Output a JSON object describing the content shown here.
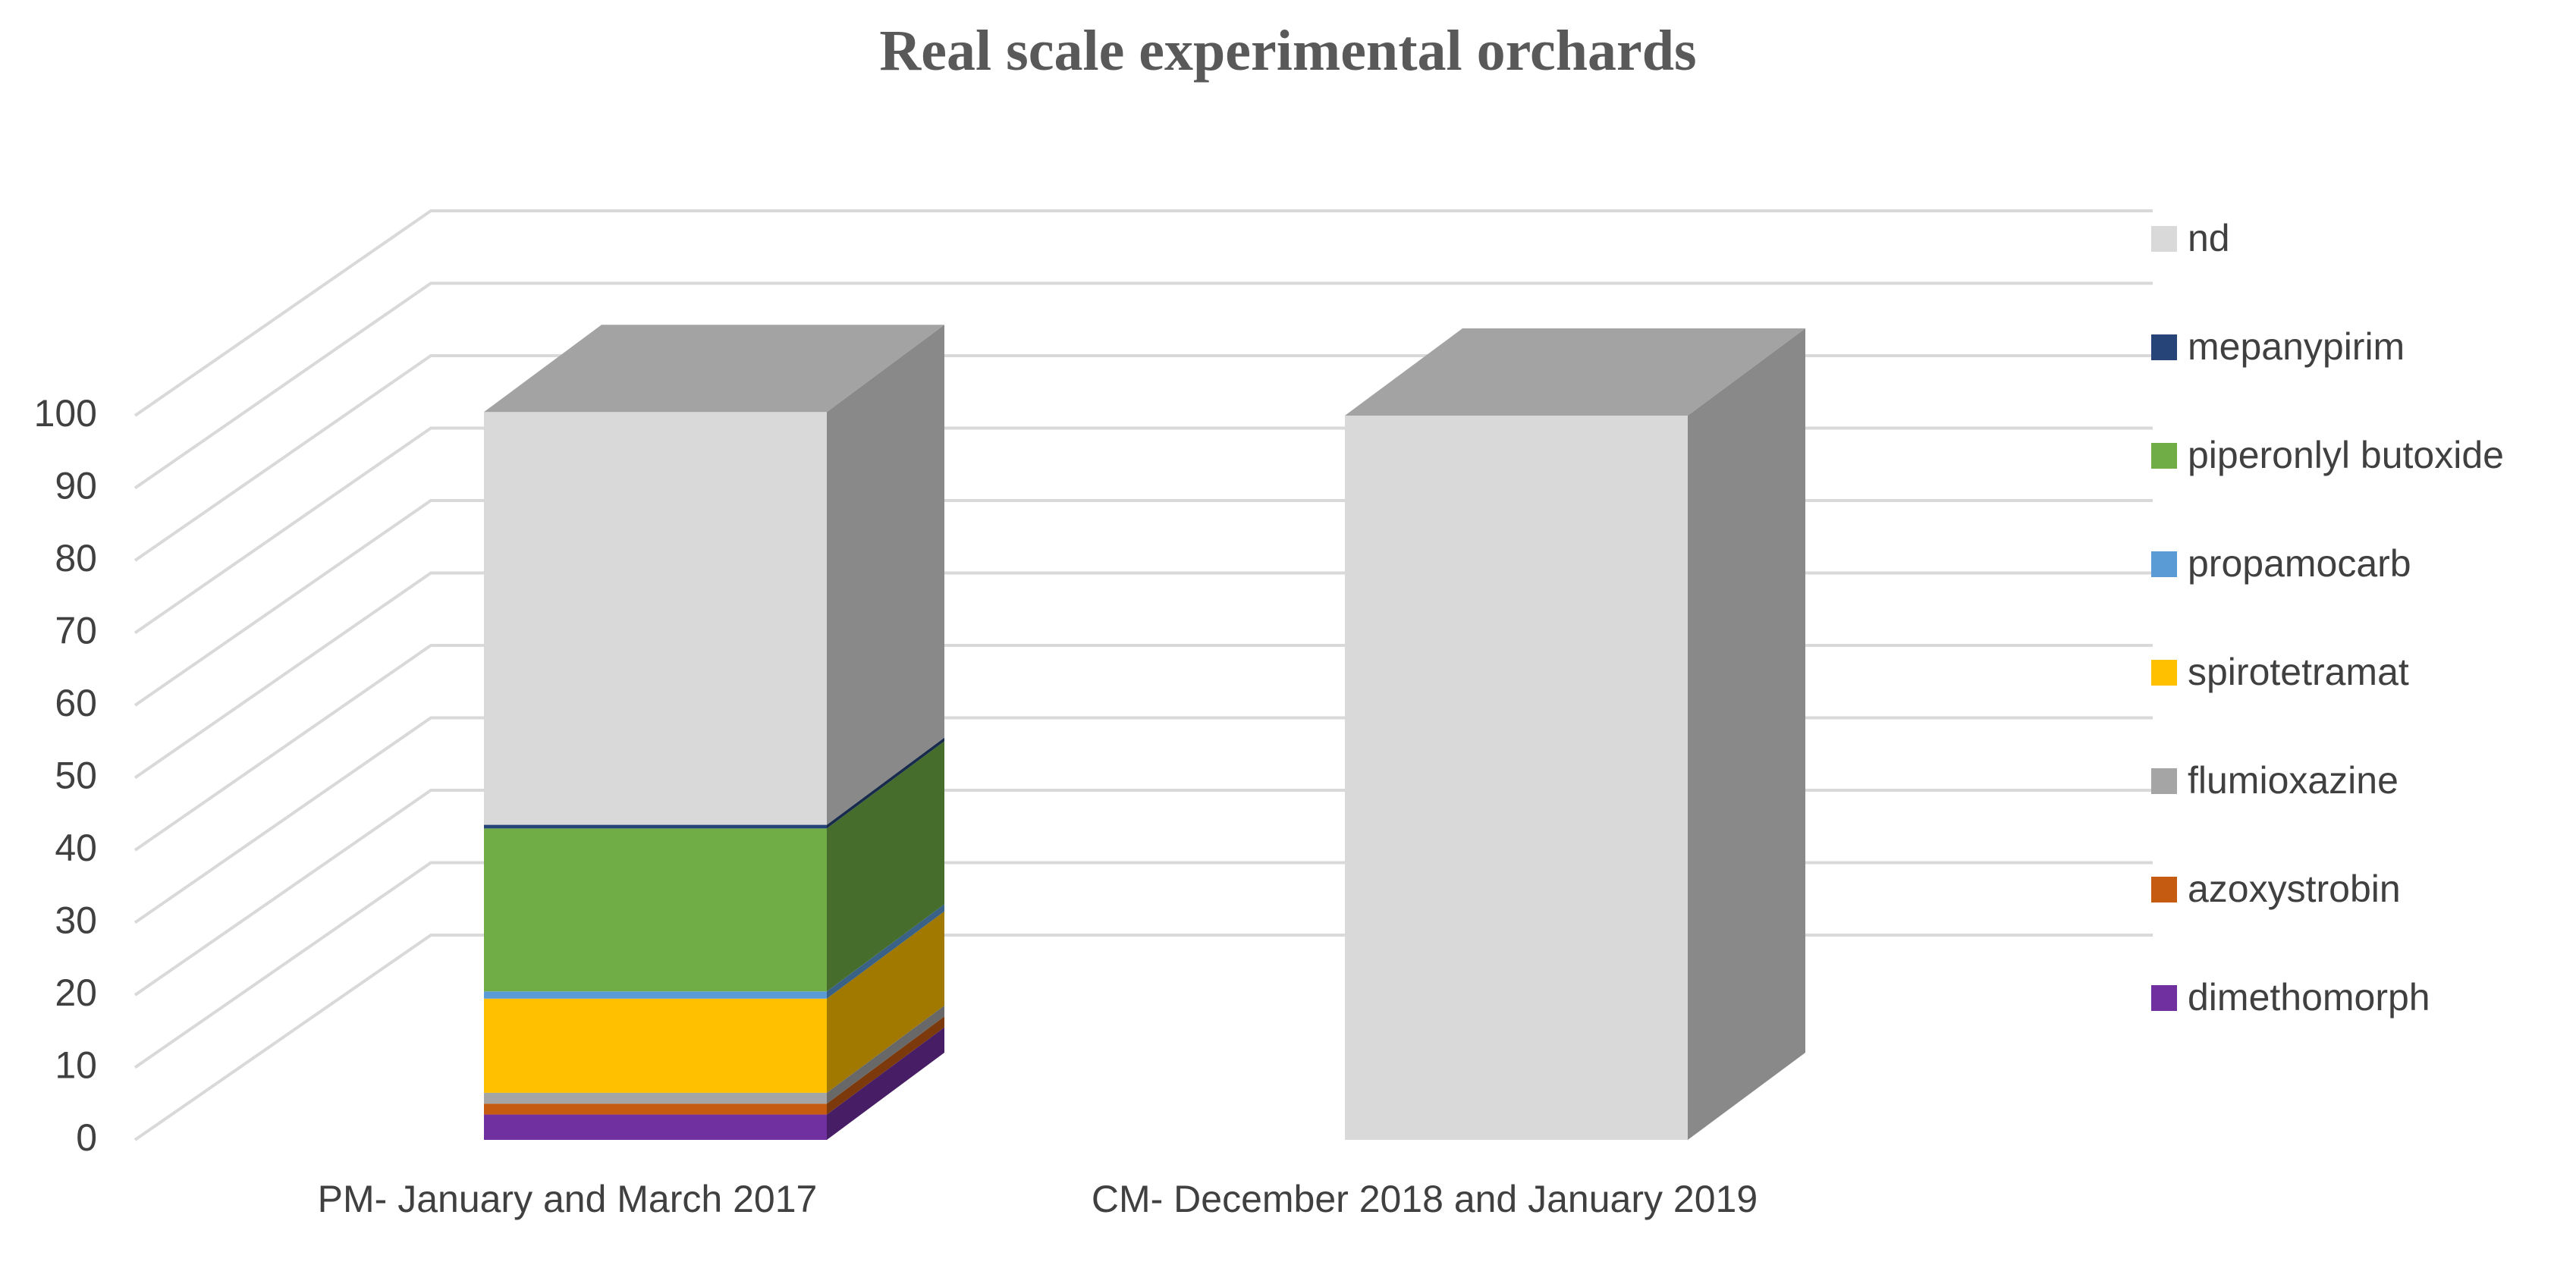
{
  "chart_data": {
    "type": "bar",
    "subtype": "stacked-3d-column",
    "title": "Real scale experimental orchards",
    "xlabel": "",
    "ylabel": "",
    "ylim": [
      0,
      100
    ],
    "ytick_labels": [
      "0",
      "10",
      "20",
      "30",
      "40",
      "50",
      "60",
      "70",
      "80",
      "90",
      "100"
    ],
    "grid": true,
    "legend_position": "right",
    "categories": [
      "PM- January and March 2017",
      "CM- December 2018 and January 2019"
    ],
    "series": [
      {
        "name": "dimethomorph",
        "color": "#7030a0",
        "values": [
          3.5,
          0
        ]
      },
      {
        "name": "azoxystrobin",
        "color": "#c55a11",
        "values": [
          1.5,
          0
        ]
      },
      {
        "name": "flumioxazine",
        "color": "#a5a5a5",
        "values": [
          1.5,
          0
        ]
      },
      {
        "name": "spirotetramat",
        "color": "#ffc000",
        "values": [
          13,
          0
        ]
      },
      {
        "name": "propamocarb",
        "color": "#5b9bd5",
        "values": [
          1,
          0
        ]
      },
      {
        "name": "piperonlyl butoxide",
        "color": "#70ad47",
        "values": [
          22.5,
          0
        ]
      },
      {
        "name": "mepanypirim",
        "color": "#264478",
        "values": [
          0.5,
          0
        ]
      },
      {
        "name": "nd",
        "color": "#d9d9d9",
        "values": [
          57,
          100
        ]
      }
    ]
  }
}
